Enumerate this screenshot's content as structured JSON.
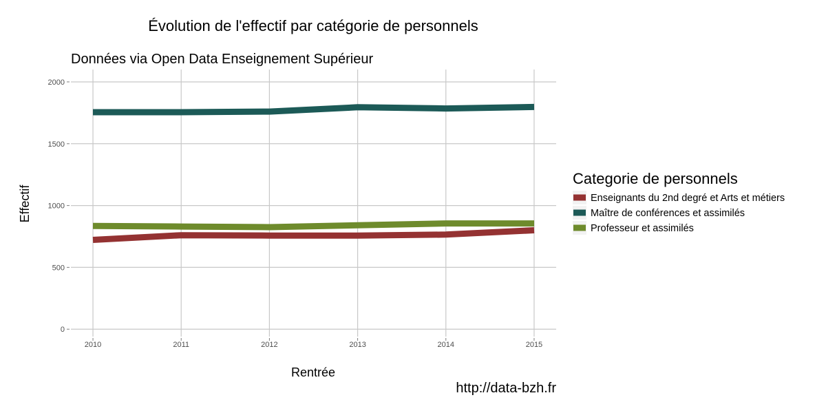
{
  "chart_data": {
    "type": "line",
    "title": "Évolution de l'effectif par catégorie de personnels",
    "subtitle": "Données via Open Data Enseignement Supérieur",
    "xlabel": "Rentrée",
    "ylabel": "Effectif",
    "caption": "http://data-bzh.fr",
    "x": [
      2010,
      2011,
      2012,
      2013,
      2014,
      2015
    ],
    "xlim": [
      2009.75,
      2015.25
    ],
    "ylim": [
      -60,
      2100
    ],
    "y_ticks": [
      0,
      500,
      1000,
      1500,
      2000
    ],
    "grid": true,
    "legend": {
      "title": "Categorie de personnels",
      "position": "right"
    },
    "series": [
      {
        "name": "Enseignants du 2nd degré et Arts et métiers",
        "color": "#943232",
        "values": [
          722,
          760,
          757,
          757,
          765,
          800
        ]
      },
      {
        "name": "Maître de conférences et assimilés",
        "color": "#1c5a57",
        "values": [
          1755,
          1755,
          1760,
          1795,
          1785,
          1797
        ]
      },
      {
        "name": "Professeur et assimilés",
        "color": "#6e8b2c",
        "values": [
          835,
          830,
          825,
          840,
          855,
          855
        ]
      }
    ]
  }
}
